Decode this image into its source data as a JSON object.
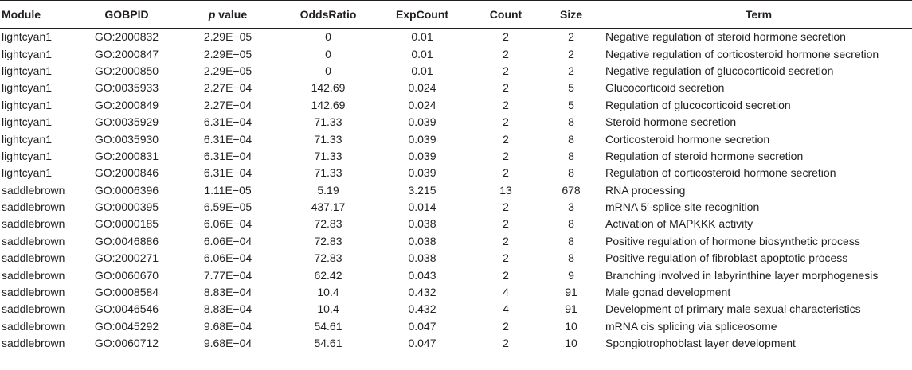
{
  "table": {
    "headers": {
      "module": "Module",
      "gobpid": "GOBPID",
      "p_italic": "p",
      "p_rest": " value",
      "odds": "OddsRatio",
      "exp": "ExpCount",
      "count": "Count",
      "size": "Size",
      "term": "Term"
    },
    "rows": [
      {
        "module": "lightcyan1",
        "gobpid": "GO:2000832",
        "p": "2.29E−05",
        "odds": "0",
        "exp": "0.01",
        "count": "2",
        "size": "2",
        "term": "Negative regulation of steroid hormone secretion"
      },
      {
        "module": "lightcyan1",
        "gobpid": "GO:2000847",
        "p": "2.29E−05",
        "odds": "0",
        "exp": "0.01",
        "count": "2",
        "size": "2",
        "term": "Negative regulation of corticosteroid hormone secretion"
      },
      {
        "module": "lightcyan1",
        "gobpid": "GO:2000850",
        "p": "2.29E−05",
        "odds": "0",
        "exp": "0.01",
        "count": "2",
        "size": "2",
        "term": "Negative regulation of glucocorticoid secretion"
      },
      {
        "module": "lightcyan1",
        "gobpid": "GO:0035933",
        "p": "2.27E−04",
        "odds": "142.69",
        "exp": "0.024",
        "count": "2",
        "size": "5",
        "term": "Glucocorticoid secretion"
      },
      {
        "module": "lightcyan1",
        "gobpid": "GO:2000849",
        "p": "2.27E−04",
        "odds": "142.69",
        "exp": "0.024",
        "count": "2",
        "size": "5",
        "term": "Regulation of glucocorticoid secretion"
      },
      {
        "module": "lightcyan1",
        "gobpid": "GO:0035929",
        "p": "6.31E−04",
        "odds": "71.33",
        "exp": "0.039",
        "count": "2",
        "size": "8",
        "term": "Steroid hormone secretion"
      },
      {
        "module": "lightcyan1",
        "gobpid": "GO:0035930",
        "p": "6.31E−04",
        "odds": "71.33",
        "exp": "0.039",
        "count": "2",
        "size": "8",
        "term": "Corticosteroid hormone secretion"
      },
      {
        "module": "lightcyan1",
        "gobpid": "GO:2000831",
        "p": "6.31E−04",
        "odds": "71.33",
        "exp": "0.039",
        "count": "2",
        "size": "8",
        "term": "Regulation of steroid hormone secretion"
      },
      {
        "module": "lightcyan1",
        "gobpid": "GO:2000846",
        "p": "6.31E−04",
        "odds": "71.33",
        "exp": "0.039",
        "count": "2",
        "size": "8",
        "term": "Regulation of corticosteroid hormone secretion"
      },
      {
        "module": "saddlebrown",
        "gobpid": "GO:0006396",
        "p": "1.11E−05",
        "odds": "5.19",
        "exp": "3.215",
        "count": "13",
        "size": "678",
        "term": "RNA processing"
      },
      {
        "module": "saddlebrown",
        "gobpid": "GO:0000395",
        "p": "6.59E−05",
        "odds": "437.17",
        "exp": "0.014",
        "count": "2",
        "size": "3",
        "term": "mRNA 5′-splice site recognition"
      },
      {
        "module": "saddlebrown",
        "gobpid": "GO:0000185",
        "p": "6.06E−04",
        "odds": "72.83",
        "exp": "0.038",
        "count": "2",
        "size": "8",
        "term": "Activation of MAPKKK activity"
      },
      {
        "module": "saddlebrown",
        "gobpid": "GO:0046886",
        "p": "6.06E−04",
        "odds": "72.83",
        "exp": "0.038",
        "count": "2",
        "size": "8",
        "term": "Positive regulation of hormone biosynthetic process"
      },
      {
        "module": "saddlebrown",
        "gobpid": "GO:2000271",
        "p": "6.06E−04",
        "odds": "72.83",
        "exp": "0.038",
        "count": "2",
        "size": "8",
        "term": "Positive regulation of fibroblast apoptotic process"
      },
      {
        "module": "saddlebrown",
        "gobpid": "GO:0060670",
        "p": "7.77E−04",
        "odds": "62.42",
        "exp": "0.043",
        "count": "2",
        "size": "9",
        "term": "Branching involved in labyrinthine layer morphogenesis"
      },
      {
        "module": "saddlebrown",
        "gobpid": "GO:0008584",
        "p": "8.83E−04",
        "odds": "10.4",
        "exp": "0.432",
        "count": "4",
        "size": "91",
        "term": "Male gonad development"
      },
      {
        "module": "saddlebrown",
        "gobpid": "GO:0046546",
        "p": "8.83E−04",
        "odds": "10.4",
        "exp": "0.432",
        "count": "4",
        "size": "91",
        "term": "Development of primary male sexual characteristics"
      },
      {
        "module": "saddlebrown",
        "gobpid": "GO:0045292",
        "p": "9.68E−04",
        "odds": "54.61",
        "exp": "0.047",
        "count": "2",
        "size": "10",
        "term": "mRNA cis splicing via spliceosome"
      },
      {
        "module": "saddlebrown",
        "gobpid": "GO:0060712",
        "p": "9.68E−04",
        "odds": "54.61",
        "exp": "0.047",
        "count": "2",
        "size": "10",
        "term": "Spongiotrophoblast layer development"
      }
    ]
  }
}
